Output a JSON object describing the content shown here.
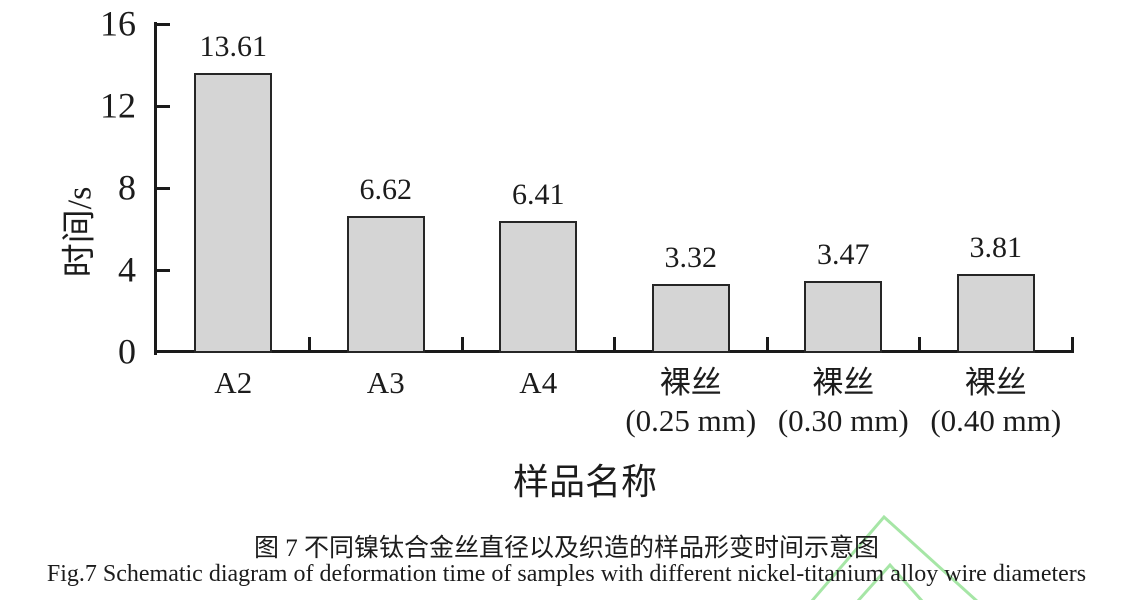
{
  "figure": {
    "caption_zh": "图 7 不同镍钛合金丝直径以及织造的样品形变时间示意图",
    "caption_en": "Fig.7 Schematic diagram of deformation time of samples with different nickel-titanium alloy wire diameters"
  },
  "chart_data": {
    "type": "bar",
    "title": "",
    "xlabel": "样品名称",
    "ylabel": "时间/s",
    "categories": [
      "A2",
      "A3",
      "A4",
      "裸丝 (0.25 mm)",
      "裸丝 (0.30 mm)",
      "裸丝 (0.40 mm)"
    ],
    "category_lines": [
      [
        "A2"
      ],
      [
        "A3"
      ],
      [
        "A4"
      ],
      [
        "裸丝",
        "(0.25 mm)"
      ],
      [
        "裸丝",
        "(0.30 mm)"
      ],
      [
        "裸丝",
        "(0.40 mm)"
      ]
    ],
    "values": [
      13.61,
      6.62,
      6.41,
      3.32,
      3.47,
      3.81
    ],
    "value_labels": [
      "13.61",
      "6.62",
      "6.41",
      "3.32",
      "3.47",
      "3.81"
    ],
    "ylim": [
      0,
      16
    ],
    "yticks": [
      0,
      4,
      8,
      12,
      16
    ],
    "grid": false,
    "legend": null,
    "bar_fill": "#d5d5d5",
    "bar_border": "#262626",
    "axis_color": "#1a1a1a",
    "text_color": "#1c1c1c"
  },
  "watermark": {
    "shape": "double-chevron",
    "color": "#a6e6a6"
  }
}
